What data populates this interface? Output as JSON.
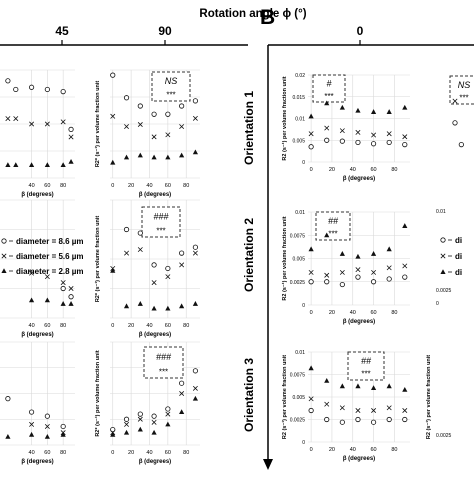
{
  "header": {
    "axis_title": "Rotation angle ϕ (°)",
    "left_ticks": [
      "45",
      "90"
    ],
    "panel_letter": "B",
    "right_tick": "0"
  },
  "orientations": [
    "Orientation 1",
    "Orientation 2",
    "Orientation 3"
  ],
  "legend": {
    "left": [
      "diameter = 8.6 µm",
      "diameter = 5.6 µm",
      "diameter = 2.8 µm"
    ],
    "right": [
      "di",
      "di",
      "di"
    ]
  },
  "ylabels": {
    "r2star": "R2* (s⁻¹) per volume fraction unit",
    "r2": "R2 (s⁻¹) per volume fraction unit"
  },
  "colors": {
    "marker": "#111111",
    "grid": "#d9d9d9",
    "box": "#333333"
  },
  "chart_data": [
    {
      "type": "scatter",
      "panel": "left-col1-row1",
      "xlabel": "β (degrees)",
      "xticks": [
        "40",
        "60",
        "80"
      ],
      "series": [
        {
          "marker": "circle",
          "points": [
            [
              10,
              0.9
            ],
            [
              20,
              0.82
            ],
            [
              40,
              0.84
            ],
            [
              60,
              0.82
            ],
            [
              80,
              0.8
            ],
            [
              90,
              0.45
            ]
          ]
        },
        {
          "marker": "cross",
          "points": [
            [
              10,
              0.55
            ],
            [
              20,
              0.55
            ],
            [
              40,
              0.5
            ],
            [
              60,
              0.5
            ],
            [
              80,
              0.52
            ],
            [
              90,
              0.38
            ]
          ]
        },
        {
          "marker": "triangle",
          "points": [
            [
              10,
              0.12
            ],
            [
              20,
              0.12
            ],
            [
              40,
              0.12
            ],
            [
              60,
              0.12
            ],
            [
              80,
              0.12
            ],
            [
              90,
              0.15
            ]
          ]
        }
      ]
    },
    {
      "type": "scatter",
      "panel": "left-col2-row1",
      "ylabel": "R2* (s⁻¹) per volume fraction unit",
      "xlabel": "β (degrees)",
      "xticks": [
        "0",
        "20",
        "40",
        "60",
        "80"
      ],
      "annotation": [
        "NS",
        "***"
      ],
      "series": [
        {
          "marker": "circle",
          "points": [
            [
              0,
              1.0
            ],
            [
              15,
              0.78
            ],
            [
              30,
              0.7
            ],
            [
              45,
              0.62
            ],
            [
              60,
              0.62
            ],
            [
              75,
              0.7
            ],
            [
              90,
              0.75
            ]
          ]
        },
        {
          "marker": "cross",
          "points": [
            [
              0,
              0.6
            ],
            [
              15,
              0.5
            ],
            [
              30,
              0.52
            ],
            [
              45,
              0.4
            ],
            [
              60,
              0.42
            ],
            [
              75,
              0.5
            ],
            [
              90,
              0.58
            ]
          ]
        },
        {
          "marker": "triangle",
          "points": [
            [
              0,
              0.15
            ],
            [
              15,
              0.2
            ],
            [
              30,
              0.22
            ],
            [
              45,
              0.2
            ],
            [
              60,
              0.2
            ],
            [
              75,
              0.22
            ],
            [
              90,
              0.25
            ]
          ]
        }
      ]
    },
    {
      "type": "scatter",
      "panel": "left-col1-row2",
      "xlabel": "β (degrees)",
      "xticks": [
        "40",
        "60",
        "80"
      ],
      "series": [
        {
          "marker": "circle",
          "points": [
            [
              80,
              0.25
            ],
            [
              90,
              0.18
            ]
          ]
        },
        {
          "marker": "cross",
          "points": [
            [
              40,
              0.38
            ],
            [
              60,
              0.35
            ],
            [
              80,
              0.3
            ],
            [
              90,
              0.25
            ]
          ]
        },
        {
          "marker": "triangle",
          "points": [
            [
              40,
              0.15
            ],
            [
              60,
              0.15
            ],
            [
              80,
              0.12
            ],
            [
              90,
              0.12
            ]
          ]
        }
      ]
    },
    {
      "type": "scatter",
      "panel": "left-col2-row2",
      "ylabel": "R2* (s⁻¹) per volume fraction unit",
      "xlabel": "β (degrees)",
      "xticks": [
        "0",
        "20",
        "40",
        "60",
        "80"
      ],
      "annotation": [
        "###",
        "***"
      ],
      "series": [
        {
          "marker": "circle",
          "points": [
            [
              15,
              0.75
            ],
            [
              30,
              0.72
            ],
            [
              45,
              0.45
            ],
            [
              60,
              0.42
            ],
            [
              75,
              0.55
            ],
            [
              90,
              0.6
            ]
          ]
        },
        {
          "marker": "cross",
          "points": [
            [
              0,
              0.42
            ],
            [
              15,
              0.55
            ],
            [
              30,
              0.58
            ],
            [
              45,
              0.3
            ],
            [
              60,
              0.35
            ],
            [
              75,
              0.45
            ],
            [
              90,
              0.55
            ]
          ]
        },
        {
          "marker": "triangle",
          "points": [
            [
              0,
              0.4
            ],
            [
              15,
              0.1
            ],
            [
              30,
              0.12
            ],
            [
              45,
              0.08
            ],
            [
              60,
              0.08
            ],
            [
              75,
              0.1
            ],
            [
              90,
              0.12
            ]
          ]
        }
      ]
    },
    {
      "type": "scatter",
      "panel": "left-col1-row3",
      "xlabel": "β (degrees)",
      "xticks": [
        "40",
        "60",
        "80"
      ],
      "series": [
        {
          "marker": "circle",
          "points": [
            [
              10,
              0.45
            ],
            [
              40,
              0.32
            ],
            [
              60,
              0.28
            ],
            [
              80,
              0.18
            ]
          ]
        },
        {
          "marker": "cross",
          "points": [
            [
              40,
              0.2
            ],
            [
              60,
              0.18
            ],
            [
              80,
              0.12
            ]
          ]
        },
        {
          "marker": "triangle",
          "points": [
            [
              10,
              0.08
            ],
            [
              40,
              0.1
            ],
            [
              60,
              0.08
            ],
            [
              80,
              0.1
            ]
          ]
        }
      ]
    },
    {
      "type": "scatter",
      "panel": "left-col2-row3",
      "ylabel": "R2* (s⁻¹) per volume fraction unit",
      "xlabel": "β (degrees)",
      "xticks": [
        "0",
        "20",
        "40",
        "60",
        "80"
      ],
      "annotation": [
        "###",
        "***"
      ],
      "series": [
        {
          "marker": "circle",
          "points": [
            [
              0,
              0.15
            ],
            [
              15,
              0.25
            ],
            [
              30,
              0.3
            ],
            [
              45,
              0.28
            ],
            [
              60,
              0.35
            ],
            [
              75,
              0.6
            ],
            [
              90,
              0.72
            ]
          ]
        },
        {
          "marker": "cross",
          "points": [
            [
              0,
              0.12
            ],
            [
              15,
              0.2
            ],
            [
              30,
              0.25
            ],
            [
              45,
              0.22
            ],
            [
              60,
              0.3
            ],
            [
              75,
              0.5
            ],
            [
              90,
              0.55
            ]
          ]
        },
        {
          "marker": "triangle",
          "points": [
            [
              0,
              0.1
            ],
            [
              15,
              0.12
            ],
            [
              30,
              0.15
            ],
            [
              45,
              0.12
            ],
            [
              60,
              0.2
            ],
            [
              75,
              0.32
            ],
            [
              90,
              0.45
            ]
          ]
        }
      ]
    },
    {
      "type": "scatter",
      "panel": "B-orientation1",
      "ylabel": "R2 (s⁻¹) per volume fraction unit",
      "xlabel": "β (degrees)",
      "xticks": [
        "0",
        "20",
        "40",
        "60",
        "80"
      ],
      "ylim": [
        0,
        0.02
      ],
      "yticks": [
        "0",
        "0.005",
        "0.01",
        "0.015",
        "0.02"
      ],
      "annotation": [
        "#",
        "***"
      ],
      "series": [
        {
          "marker": "circle",
          "points": [
            [
              0,
              0.0035
            ],
            [
              15,
              0.005
            ],
            [
              30,
              0.0048
            ],
            [
              45,
              0.0045
            ],
            [
              60,
              0.0042
            ],
            [
              75,
              0.0045
            ],
            [
              90,
              0.004
            ]
          ]
        },
        {
          "marker": "cross",
          "points": [
            [
              0,
              0.0065
            ],
            [
              15,
              0.0078
            ],
            [
              30,
              0.0072
            ],
            [
              45,
              0.0068
            ],
            [
              60,
              0.0062
            ],
            [
              75,
              0.0065
            ],
            [
              90,
              0.0058
            ]
          ]
        },
        {
          "marker": "triangle",
          "points": [
            [
              0,
              0.0105
            ],
            [
              15,
              0.0135
            ],
            [
              30,
              0.0125
            ],
            [
              45,
              0.0118
            ],
            [
              60,
              0.0115
            ],
            [
              75,
              0.0115
            ],
            [
              90,
              0.0125
            ]
          ]
        }
      ]
    },
    {
      "type": "scatter",
      "panel": "B-orientation2",
      "ylabel": "R2 (s⁻¹) per volume fraction unit",
      "xlabel": "β (degrees)",
      "xticks": [
        "0",
        "20",
        "40",
        "60",
        "80"
      ],
      "ylim": [
        0,
        0.01
      ],
      "yticks": [
        "0",
        "0.0025",
        "0.005",
        "0.0075",
        "0.01"
      ],
      "annotation": [
        "##",
        "***"
      ],
      "series": [
        {
          "marker": "circle",
          "points": [
            [
              0,
              0.0025
            ],
            [
              15,
              0.0025
            ],
            [
              30,
              0.0022
            ],
            [
              45,
              0.003
            ],
            [
              60,
              0.0025
            ],
            [
              75,
              0.0028
            ],
            [
              90,
              0.003
            ]
          ]
        },
        {
          "marker": "cross",
          "points": [
            [
              0,
              0.0035
            ],
            [
              15,
              0.0032
            ],
            [
              30,
              0.0035
            ],
            [
              45,
              0.0038
            ],
            [
              60,
              0.0035
            ],
            [
              75,
              0.004
            ],
            [
              90,
              0.0042
            ]
          ]
        },
        {
          "marker": "triangle",
          "points": [
            [
              0,
              0.006
            ],
            [
              15,
              0.0075
            ],
            [
              30,
              0.0055
            ],
            [
              45,
              0.0052
            ],
            [
              60,
              0.0055
            ],
            [
              75,
              0.006
            ],
            [
              90,
              0.0085
            ]
          ]
        }
      ]
    },
    {
      "type": "scatter",
      "panel": "B-orientation3",
      "ylabel": "R2 (s⁻¹) per volume fraction unit",
      "xlabel": "β (degrees)",
      "xticks": [
        "0",
        "20",
        "40",
        "60",
        "80"
      ],
      "ylim": [
        0,
        0.01
      ],
      "yticks": [
        "0",
        "0.0025",
        "0.005",
        "0.0075",
        "0.01"
      ],
      "annotation": [
        "##",
        "***"
      ],
      "series": [
        {
          "marker": "circle",
          "points": [
            [
              0,
              0.0035
            ],
            [
              15,
              0.0025
            ],
            [
              30,
              0.0022
            ],
            [
              45,
              0.0025
            ],
            [
              60,
              0.0022
            ],
            [
              75,
              0.0025
            ],
            [
              90,
              0.0025
            ]
          ]
        },
        {
          "marker": "cross",
          "points": [
            [
              0,
              0.0048
            ],
            [
              15,
              0.0042
            ],
            [
              30,
              0.0038
            ],
            [
              45,
              0.0035
            ],
            [
              60,
              0.0035
            ],
            [
              75,
              0.0038
            ],
            [
              90,
              0.0035
            ]
          ]
        },
        {
          "marker": "triangle",
          "points": [
            [
              0,
              0.0082
            ],
            [
              15,
              0.0068
            ],
            [
              30,
              0.0062
            ],
            [
              45,
              0.0062
            ],
            [
              60,
              0.006
            ],
            [
              75,
              0.0062
            ],
            [
              90,
              0.0058
            ]
          ]
        }
      ]
    },
    {
      "type": "scatter",
      "panel": "B-col2-row1",
      "annotation": [
        "NS",
        "***"
      ],
      "series": [
        {
          "marker": "circle",
          "points": [
            [
              0,
              0.45
            ],
            [
              10,
              0.2
            ]
          ]
        },
        {
          "marker": "cross",
          "points": [
            [
              0,
              0.7
            ]
          ]
        }
      ]
    },
    {
      "type": "scatter",
      "panel": "B-col2-row2",
      "yticks": [
        "0.01",
        "0.0025",
        "0"
      ],
      "series": []
    },
    {
      "type": "scatter",
      "panel": "B-col2-row3",
      "ylabel": "R2 (s⁻¹) per volume fraction unit",
      "yticks": [
        "0.0025"
      ],
      "series": []
    }
  ]
}
